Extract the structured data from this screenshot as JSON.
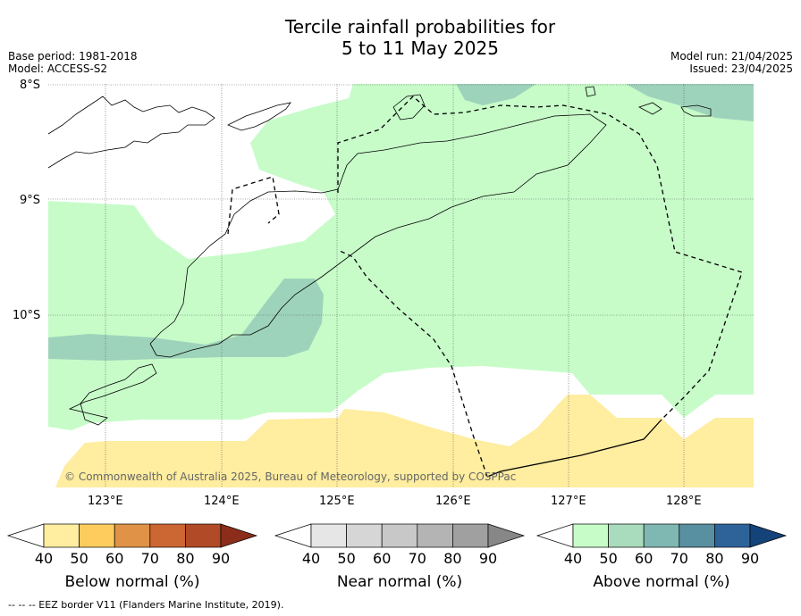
{
  "title_line1": "Tercile rainfall probabilities for",
  "title_line2": "5 to 11 May 2025",
  "meta_left": {
    "base_period": "Base period: 1981-2018",
    "model": "Model: ACCESS-S2"
  },
  "meta_right": {
    "model_run": "Model run: 21/04/2025",
    "issued": "Issued: 23/04/2025"
  },
  "copyright": "© Commonwealth of Australia 2025, Bureau of Meteorology, supported by COSPPac",
  "lat_labels": [
    "8°S",
    "9°S",
    "10°S"
  ],
  "lon_labels": [
    "123°E",
    "124°E",
    "125°E",
    "126°E",
    "127°E",
    "128°E"
  ],
  "colorbars": [
    {
      "label": "Below normal (%)",
      "ticks": [
        "40",
        "50",
        "60",
        "70",
        "80",
        "90"
      ],
      "colors": [
        "#ffffff",
        "#ffeda0",
        "#fecc5c",
        "#e09346",
        "#cc6633",
        "#b14a26",
        "#8b2d1a"
      ]
    },
    {
      "label": "Near normal (%)",
      "ticks": [
        "40",
        "50",
        "60",
        "70",
        "80",
        "90"
      ],
      "colors": [
        "#ffffff",
        "#e6e6e6",
        "#d6d6d6",
        "#c8c8c8",
        "#b4b4b4",
        "#a0a0a0",
        "#878787"
      ]
    },
    {
      "label": "Above normal (%)",
      "ticks": [
        "40",
        "50",
        "60",
        "70",
        "80",
        "90"
      ],
      "colors": [
        "#ffffff",
        "#c7fcc9",
        "#a9dbbd",
        "#7fb8b2",
        "#588fa1",
        "#2e6399",
        "#14437a"
      ]
    }
  ],
  "footer": "--  --  -- EEZ border V11 (Flanders Marine Institute, 2019)."
}
